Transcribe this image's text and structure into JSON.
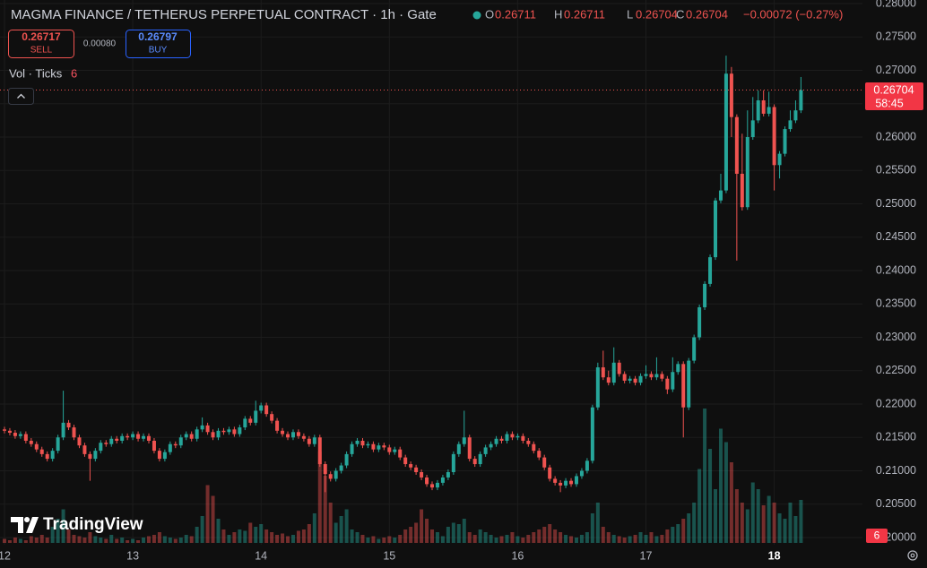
{
  "header": {
    "title": "MAGMA FINANCE / TETHERUS PERPETUAL CONTRACT · 1h · Gate",
    "ohlc": [
      {
        "key": "O",
        "value": "0.26711"
      },
      {
        "key": "H",
        "value": "0.26711"
      },
      {
        "key": "L",
        "value": "0.26704"
      },
      {
        "key": "C",
        "value": "0.26704"
      }
    ],
    "change": "−0.00072 (−0.27%)"
  },
  "trade": {
    "sell_price": "0.26717",
    "sell": "SELL",
    "spread": "0.00080",
    "buy_price": "0.26797",
    "buy": "BUY"
  },
  "indicator": {
    "name": "Vol · Ticks",
    "value": 6
  },
  "countdown": "58:45",
  "brand": "TradingView",
  "chart_data": {
    "type": "candlestick",
    "up_color": "#26a69a",
    "down_color": "#ef5350",
    "xlim": [
      0,
      160
    ],
    "xticks": [
      {
        "value": 0,
        "label": "12"
      },
      {
        "value": 24,
        "label": "13"
      },
      {
        "value": 48,
        "label": "14"
      },
      {
        "value": 72,
        "label": "15"
      },
      {
        "value": 96,
        "label": "16"
      },
      {
        "value": 120,
        "label": "17"
      },
      {
        "value": 144,
        "label": "18"
      }
    ],
    "ylim": [
      0.2,
      0.28
    ],
    "yticks": [
      {
        "value": 0.28,
        "label": "0.28000"
      },
      {
        "value": 0.275,
        "label": "0.27500"
      },
      {
        "value": 0.27,
        "label": "0.27000"
      },
      {
        "value": 0.265,
        "label": "0.26500"
      },
      {
        "value": 0.26,
        "label": "0.26000"
      },
      {
        "value": 0.255,
        "label": "0.25500"
      },
      {
        "value": 0.25,
        "label": "0.25000"
      },
      {
        "value": 0.245,
        "label": "0.24500"
      },
      {
        "value": 0.24,
        "label": "0.24000"
      },
      {
        "value": 0.235,
        "label": "0.23500"
      },
      {
        "value": 0.23,
        "label": "0.23000"
      },
      {
        "value": 0.225,
        "label": "0.22500"
      },
      {
        "value": 0.22,
        "label": "0.22000"
      },
      {
        "value": 0.215,
        "label": "0.21500"
      },
      {
        "value": 0.21,
        "label": "0.21000"
      },
      {
        "value": 0.205,
        "label": "0.20500"
      },
      {
        "value": 0.2,
        "label": "0.20000"
      }
    ],
    "grid": true,
    "open": [
      0.2162,
      0.216,
      0.2157,
      0.2152,
      0.2155,
      0.2145,
      0.214,
      0.2132,
      0.2125,
      0.2118,
      0.213,
      0.215,
      0.2172,
      0.2165,
      0.215,
      0.2138,
      0.2125,
      0.2118,
      0.213,
      0.2142,
      0.214,
      0.2148,
      0.2145,
      0.2152,
      0.215,
      0.2155,
      0.2148,
      0.2152,
      0.2145,
      0.213,
      0.2118,
      0.2128,
      0.214,
      0.2138,
      0.215,
      0.2155,
      0.2148,
      0.2162,
      0.2168,
      0.2158,
      0.215,
      0.216,
      0.2158,
      0.2162,
      0.2155,
      0.2165,
      0.2178,
      0.2172,
      0.219,
      0.2198,
      0.2185,
      0.2175,
      0.216,
      0.2155,
      0.215,
      0.2158,
      0.2152,
      0.2148,
      0.214,
      0.215,
      0.211,
      0.2095,
      0.2088,
      0.21,
      0.2108,
      0.2125,
      0.214,
      0.2145,
      0.2138,
      0.214,
      0.2132,
      0.2138,
      0.2135,
      0.2128,
      0.2132,
      0.212,
      0.211,
      0.2105,
      0.2098,
      0.209,
      0.208,
      0.2075,
      0.2082,
      0.209,
      0.2098,
      0.2125,
      0.214,
      0.215,
      0.2118,
      0.211,
      0.2125,
      0.2135,
      0.214,
      0.2148,
      0.2145,
      0.2155,
      0.215,
      0.2152,
      0.2145,
      0.214,
      0.213,
      0.212,
      0.2105,
      0.2088,
      0.2082,
      0.2078,
      0.2085,
      0.208,
      0.2092,
      0.21,
      0.2115,
      0.2195,
      0.2255,
      0.224,
      0.2232,
      0.2262,
      0.2245,
      0.2235,
      0.2238,
      0.2232,
      0.2242,
      0.2245,
      0.224,
      0.2245,
      0.2238,
      0.2222,
      0.2248,
      0.226,
      0.2195,
      0.2265,
      0.23,
      0.2345,
      0.238,
      0.242,
      0.2505,
      0.252,
      0.2695,
      0.263,
      0.2545,
      0.2495,
      0.26,
      0.2625,
      0.2655,
      0.2635,
      0.2645,
      0.2558,
      0.2575,
      0.2612,
      0.2625,
      0.264
    ],
    "high": [
      0.2166,
      0.2164,
      0.2161,
      0.2159,
      0.2159,
      0.2149,
      0.2144,
      0.2136,
      0.2129,
      0.2134,
      0.2154,
      0.222,
      0.2176,
      0.2169,
      0.2154,
      0.2142,
      0.2129,
      0.2134,
      0.2146,
      0.2146,
      0.2152,
      0.2152,
      0.2156,
      0.2156,
      0.2159,
      0.2159,
      0.2156,
      0.2156,
      0.2149,
      0.2134,
      0.2132,
      0.2144,
      0.2144,
      0.2154,
      0.2159,
      0.2159,
      0.2166,
      0.218,
      0.2172,
      0.2162,
      0.2164,
      0.2164,
      0.2166,
      0.2166,
      0.2169,
      0.2182,
      0.2182,
      0.2205,
      0.2202,
      0.2202,
      0.2189,
      0.2179,
      0.2164,
      0.2159,
      0.2162,
      0.2162,
      0.2156,
      0.2152,
      0.2154,
      0.2154,
      0.2114,
      0.2099,
      0.2104,
      0.2112,
      0.2129,
      0.2144,
      0.2149,
      0.2149,
      0.2144,
      0.2144,
      0.2142,
      0.2142,
      0.2139,
      0.2136,
      0.2136,
      0.2124,
      0.2114,
      0.2109,
      0.2102,
      0.2094,
      0.2084,
      0.2086,
      0.2094,
      0.2102,
      0.2129,
      0.2144,
      0.219,
      0.2154,
      0.2122,
      0.2129,
      0.2139,
      0.2144,
      0.2152,
      0.2152,
      0.2159,
      0.2159,
      0.2156,
      0.2156,
      0.2149,
      0.2144,
      0.2134,
      0.2124,
      0.2109,
      0.2092,
      0.2086,
      0.2089,
      0.2089,
      0.2096,
      0.2104,
      0.2119,
      0.2199,
      0.2262,
      0.228,
      0.225,
      0.2285,
      0.2266,
      0.2249,
      0.2242,
      0.2242,
      0.2246,
      0.2258,
      0.2249,
      0.227,
      0.2249,
      0.2242,
      0.227,
      0.2264,
      0.2264,
      0.2269,
      0.2304,
      0.2349,
      0.2384,
      0.2424,
      0.2509,
      0.2545,
      0.2722,
      0.2705,
      0.2634,
      0.2605,
      0.264,
      0.266,
      0.267,
      0.267,
      0.2668,
      0.2649,
      0.2579,
      0.2616,
      0.264,
      0.2655,
      0.269
    ],
    "low": [
      0.2156,
      0.2153,
      0.2148,
      0.2148,
      0.2141,
      0.2136,
      0.2128,
      0.2121,
      0.2114,
      0.2114,
      0.2126,
      0.2146,
      0.2161,
      0.2146,
      0.2134,
      0.2121,
      0.2085,
      0.2114,
      0.2126,
      0.2136,
      0.2136,
      0.2141,
      0.2141,
      0.2146,
      0.2146,
      0.2144,
      0.2144,
      0.2141,
      0.2126,
      0.2114,
      0.2114,
      0.2124,
      0.2134,
      0.2134,
      0.2146,
      0.2144,
      0.2144,
      0.2158,
      0.2154,
      0.2146,
      0.2146,
      0.2154,
      0.2154,
      0.2151,
      0.2151,
      0.2161,
      0.2168,
      0.2168,
      0.2186,
      0.2181,
      0.2171,
      0.2156,
      0.2151,
      0.2146,
      0.2146,
      0.2148,
      0.2144,
      0.2136,
      0.2136,
      0.2106,
      0.2068,
      0.2084,
      0.2084,
      0.2096,
      0.2104,
      0.2121,
      0.2136,
      0.2134,
      0.2134,
      0.2128,
      0.2128,
      0.2131,
      0.2124,
      0.2124,
      0.2116,
      0.2106,
      0.2101,
      0.2094,
      0.2086,
      0.2076,
      0.2071,
      0.2071,
      0.2078,
      0.2086,
      0.2094,
      0.2121,
      0.2136,
      0.2114,
      0.2106,
      0.2106,
      0.2121,
      0.2131,
      0.2136,
      0.2141,
      0.2141,
      0.2146,
      0.2146,
      0.2141,
      0.2136,
      0.2126,
      0.2116,
      0.2101,
      0.2084,
      0.2078,
      0.2068,
      0.2074,
      0.2076,
      0.2076,
      0.2088,
      0.2096,
      0.2111,
      0.2191,
      0.2236,
      0.2228,
      0.2228,
      0.2241,
      0.2231,
      0.2231,
      0.2228,
      0.2228,
      0.2238,
      0.2236,
      0.2236,
      0.2234,
      0.2215,
      0.2218,
      0.2244,
      0.215,
      0.2191,
      0.2261,
      0.2296,
      0.2341,
      0.2376,
      0.2416,
      0.2501,
      0.2516,
      0.26,
      0.2415,
      0.249,
      0.2491,
      0.2596,
      0.2621,
      0.2631,
      0.2631,
      0.252,
      0.2538,
      0.2571,
      0.2608,
      0.2621,
      0.2636
    ],
    "close": [
      0.216,
      0.2157,
      0.2152,
      0.2155,
      0.2145,
      0.214,
      0.2132,
      0.2125,
      0.2118,
      0.213,
      0.215,
      0.2172,
      0.2165,
      0.215,
      0.2138,
      0.2125,
      0.2118,
      0.213,
      0.2142,
      0.214,
      0.2148,
      0.2145,
      0.2152,
      0.215,
      0.2155,
      0.2148,
      0.2152,
      0.2145,
      0.213,
      0.2118,
      0.2128,
      0.214,
      0.2138,
      0.215,
      0.2155,
      0.2148,
      0.2162,
      0.2168,
      0.2158,
      0.215,
      0.216,
      0.2158,
      0.2162,
      0.2155,
      0.2165,
      0.2178,
      0.2172,
      0.219,
      0.2198,
      0.2185,
      0.2175,
      0.216,
      0.2155,
      0.215,
      0.2158,
      0.2152,
      0.2148,
      0.214,
      0.215,
      0.211,
      0.2095,
      0.2088,
      0.21,
      0.2108,
      0.2125,
      0.214,
      0.2145,
      0.2138,
      0.214,
      0.2132,
      0.2138,
      0.2135,
      0.2128,
      0.2132,
      0.212,
      0.211,
      0.2105,
      0.2098,
      0.209,
      0.208,
      0.2075,
      0.2082,
      0.209,
      0.2098,
      0.2125,
      0.214,
      0.215,
      0.2118,
      0.211,
      0.2125,
      0.2135,
      0.214,
      0.2148,
      0.2145,
      0.2155,
      0.215,
      0.2152,
      0.2145,
      0.214,
      0.213,
      0.212,
      0.2105,
      0.2088,
      0.2082,
      0.2078,
      0.2085,
      0.208,
      0.2092,
      0.21,
      0.2115,
      0.2195,
      0.2255,
      0.224,
      0.2232,
      0.2262,
      0.2245,
      0.2235,
      0.2238,
      0.2232,
      0.2242,
      0.2245,
      0.224,
      0.2245,
      0.2238,
      0.2222,
      0.2248,
      0.226,
      0.2195,
      0.2265,
      0.23,
      0.2345,
      0.238,
      0.242,
      0.2505,
      0.252,
      0.2695,
      0.263,
      0.2545,
      0.2495,
      0.26,
      0.2625,
      0.2655,
      0.2635,
      0.2645,
      0.2558,
      0.2575,
      0.2612,
      0.2625,
      0.264,
      0.26704
    ],
    "volume": [
      3,
      2,
      4,
      3,
      2,
      5,
      4,
      6,
      4,
      12,
      18,
      25,
      10,
      6,
      5,
      4,
      8,
      5,
      4,
      3,
      6,
      3,
      4,
      2,
      3,
      2,
      4,
      5,
      6,
      8,
      5,
      4,
      3,
      4,
      6,
      5,
      12,
      20,
      43,
      35,
      18,
      10,
      6,
      8,
      10,
      9,
      15,
      12,
      14,
      10,
      8,
      6,
      7,
      5,
      6,
      9,
      10,
      14,
      22,
      68,
      50,
      30,
      15,
      20,
      25,
      10,
      8,
      6,
      4,
      5,
      3,
      4,
      5,
      4,
      6,
      10,
      12,
      15,
      25,
      18,
      10,
      8,
      5,
      12,
      15,
      14,
      18,
      8,
      6,
      10,
      8,
      6,
      4,
      5,
      6,
      8,
      5,
      4,
      6,
      8,
      10,
      12,
      14,
      10,
      8,
      6,
      5,
      4,
      6,
      8,
      22,
      30,
      12,
      8,
      6,
      5,
      4,
      5,
      6,
      8,
      6,
      8,
      5,
      6,
      10,
      12,
      14,
      18,
      22,
      30,
      55,
      100,
      70,
      40,
      85,
      75,
      60,
      40,
      30,
      25,
      45,
      40,
      28,
      35,
      30,
      22,
      18,
      30,
      20,
      32
    ]
  }
}
